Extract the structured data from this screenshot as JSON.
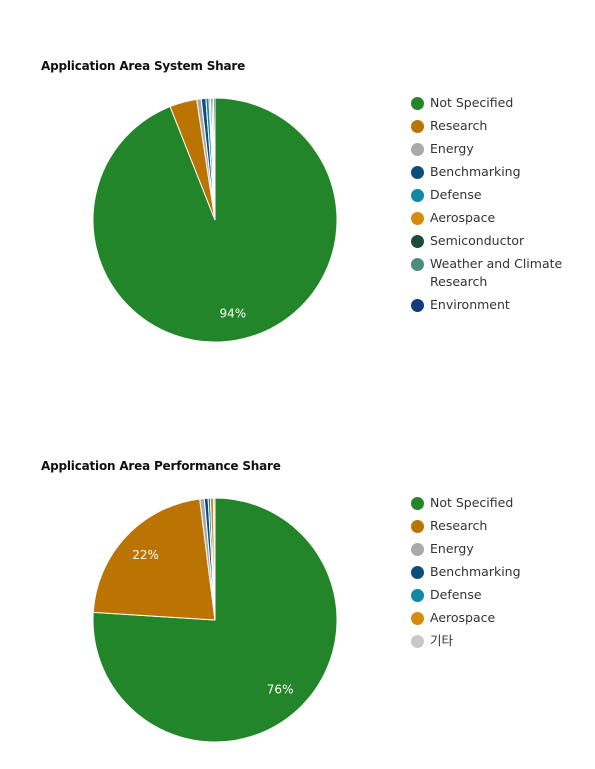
{
  "chart_data": [
    {
      "type": "pie",
      "title": "Application Area System Share",
      "slices": [
        {
          "label": "Not Specified",
          "value": 94,
          "color": "#23852a",
          "data_label": "94%"
        },
        {
          "label": "Research",
          "value": 3.6,
          "color": "#bb7302",
          "data_label": ""
        },
        {
          "label": "Energy",
          "value": 0.6,
          "color": "#a9a9a9",
          "data_label": ""
        },
        {
          "label": "Benchmarking",
          "value": 0.6,
          "color": "#0e4c7b",
          "data_label": ""
        },
        {
          "label": "Defense",
          "value": 0.4,
          "color": "#1188a6",
          "data_label": ""
        },
        {
          "label": "Aerospace",
          "value": 0.2,
          "color": "#d48c0c",
          "data_label": ""
        },
        {
          "label": "Semiconductor",
          "value": 0.2,
          "color": "#1e4b3d",
          "data_label": ""
        },
        {
          "label": "Weather and Climate Research",
          "value": 0.2,
          "color": "#4b8c7e",
          "data_label": ""
        },
        {
          "label": "Environment",
          "value": 0.2,
          "color": "#123b7d",
          "data_label": ""
        }
      ]
    },
    {
      "type": "pie",
      "title": "Application Area Performance Share",
      "slices": [
        {
          "label": "Not Specified",
          "value": 76,
          "color": "#23852a",
          "data_label": "76%"
        },
        {
          "label": "Research",
          "value": 22,
          "color": "#bb7302",
          "data_label": "22%"
        },
        {
          "label": "Energy",
          "value": 0.6,
          "color": "#a9a9a9",
          "data_label": ""
        },
        {
          "label": "Benchmarking",
          "value": 0.5,
          "color": "#0e4c7b",
          "data_label": ""
        },
        {
          "label": "Defense",
          "value": 0.3,
          "color": "#1188a6",
          "data_label": ""
        },
        {
          "label": "Aerospace",
          "value": 0.4,
          "color": "#d48c0c",
          "data_label": ""
        },
        {
          "label": "기타",
          "value": 0.2,
          "color": "#c8c8c8",
          "data_label": ""
        }
      ]
    }
  ]
}
